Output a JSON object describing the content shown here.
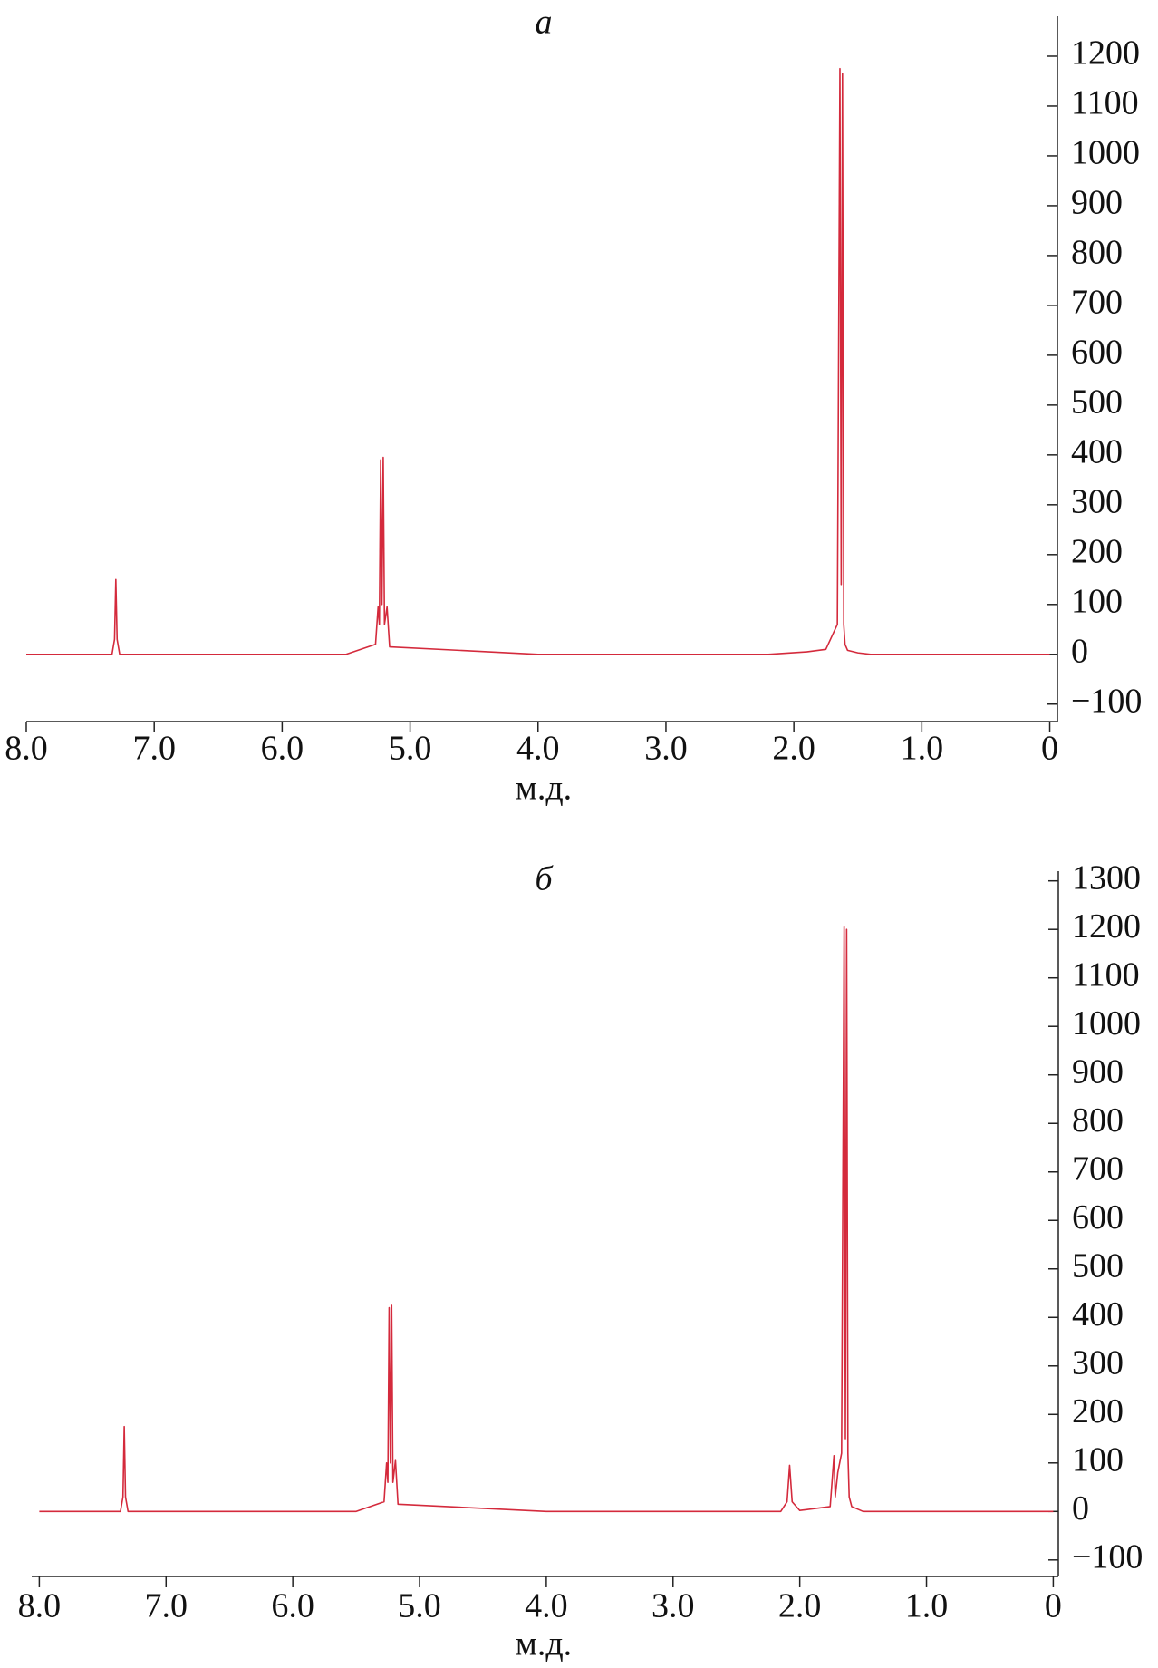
{
  "chart_data": [
    {
      "type": "line",
      "title": "а",
      "xlabel": "м.д.",
      "xlim": [
        8.0,
        -0.06
      ],
      "ylim": [
        -135,
        1280
      ],
      "xticks": [
        {
          "value": 8,
          "label": "8.0"
        },
        {
          "value": 7,
          "label": "7.0"
        },
        {
          "value": 6,
          "label": "6.0"
        },
        {
          "value": 5,
          "label": "5.0"
        },
        {
          "value": 4,
          "label": "4.0"
        },
        {
          "value": 3,
          "label": "3.0"
        },
        {
          "value": 2,
          "label": "2.0"
        },
        {
          "value": 1,
          "label": "1.0"
        },
        0
      ],
      "yticks": [
        {
          "value": -100,
          "label": "−100"
        },
        0,
        100,
        200,
        300,
        400,
        500,
        600,
        700,
        800,
        900,
        1000,
        1100,
        1200
      ],
      "grid": false,
      "series": [
        {
          "color": "#d42a3c",
          "x": [
            8.0,
            7.33,
            7.31,
            7.3,
            7.29,
            7.27,
            5.5,
            5.27,
            5.25,
            5.24,
            5.23,
            5.22,
            5.21,
            5.2,
            5.18,
            5.16,
            4.0,
            2.2,
            1.9,
            1.75,
            1.66,
            1.64,
            1.63,
            1.62,
            1.61,
            1.6,
            1.58,
            1.5,
            1.4,
            1.0,
            0.0
          ],
          "values": [
            0,
            0,
            30,
            150,
            30,
            0,
            0,
            20,
            95,
            60,
            390,
            100,
            395,
            60,
            95,
            15,
            0,
            0,
            5,
            10,
            60,
            1175,
            140,
            1165,
            60,
            20,
            8,
            3,
            0,
            0,
            0
          ]
        }
      ]
    },
    {
      "type": "line",
      "title": "б",
      "xlabel": "м.д.",
      "xlim": [
        8.06,
        -0.04
      ],
      "ylim": [
        -134,
        1320
      ],
      "xticks": [
        {
          "value": 8,
          "label": "8.0"
        },
        {
          "value": 7,
          "label": "7.0"
        },
        {
          "value": 6,
          "label": "6.0"
        },
        {
          "value": 5,
          "label": "5.0"
        },
        {
          "value": 4,
          "label": "4.0"
        },
        {
          "value": 3,
          "label": "3.0"
        },
        {
          "value": 2,
          "label": "2.0"
        },
        {
          "value": 1,
          "label": "1.0"
        },
        0
      ],
      "yticks": [
        {
          "value": -100,
          "label": "−100"
        },
        0,
        100,
        200,
        300,
        400,
        500,
        600,
        700,
        800,
        900,
        1000,
        1100,
        1200,
        1300
      ],
      "grid": false,
      "series": [
        {
          "color": "#d42a3c",
          "x": [
            8.0,
            7.36,
            7.34,
            7.33,
            7.32,
            7.3,
            5.5,
            5.28,
            5.26,
            5.25,
            5.24,
            5.23,
            5.22,
            5.21,
            5.19,
            5.17,
            4.0,
            2.15,
            2.1,
            2.08,
            2.06,
            2.0,
            1.76,
            1.73,
            1.72,
            1.7,
            1.67,
            1.65,
            1.64,
            1.63,
            1.62,
            1.61,
            1.59,
            1.5,
            1.0,
            0.0
          ],
          "values": [
            0,
            0,
            30,
            175,
            30,
            0,
            0,
            20,
            100,
            60,
            420,
            100,
            425,
            60,
            105,
            15,
            0,
            0,
            20,
            95,
            20,
            2,
            10,
            115,
            30,
            80,
            120,
            1205,
            150,
            1200,
            120,
            30,
            10,
            0,
            0,
            0
          ]
        }
      ]
    }
  ]
}
